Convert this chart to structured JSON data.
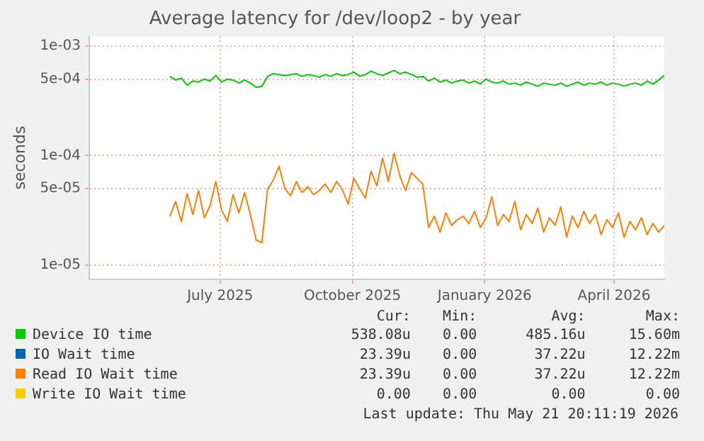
{
  "chart_data": {
    "type": "line",
    "title": "Average latency for /dev/loop2 - by year",
    "ylabel": "seconds",
    "log": "y",
    "grid": true,
    "legend": "bottom",
    "marker": "none",
    "line_style": "solid",
    "xlim": [
      "2025-04-16",
      "2026-05-21"
    ],
    "xticks": [
      {
        "value": "2025-07-16",
        "label": "July 2025"
      },
      {
        "value": "2025-10-16",
        "label": "October 2025"
      },
      {
        "value": "2026-01-16",
        "label": "January 2026"
      },
      {
        "value": "2026-04-16",
        "label": "April 2026"
      }
    ],
    "ylim": [
      7.4e-06,
      0.00123
    ],
    "yticks": [
      {
        "value": 1e-05,
        "label": "1e-05"
      },
      {
        "value": 5e-05,
        "label": "5e-05"
      },
      {
        "value": 0.0001,
        "label": "1e-04"
      },
      {
        "value": 0.0005,
        "label": "5e-04"
      },
      {
        "value": 0.001,
        "label": "1e-03"
      }
    ],
    "x": [
      "2025-06-11",
      "2025-06-15",
      "2025-06-19",
      "2025-06-23",
      "2025-06-27",
      "2025-07-01",
      "2025-07-05",
      "2025-07-09",
      "2025-07-13",
      "2025-07-17",
      "2025-07-21",
      "2025-07-25",
      "2025-07-29",
      "2025-08-02",
      "2025-08-06",
      "2025-08-10",
      "2025-08-14",
      "2025-08-18",
      "2025-08-22",
      "2025-08-26",
      "2025-08-30",
      "2025-09-03",
      "2025-09-07",
      "2025-09-11",
      "2025-09-15",
      "2025-09-19",
      "2025-09-23",
      "2025-09-27",
      "2025-10-01",
      "2025-10-05",
      "2025-10-09",
      "2025-10-13",
      "2025-10-17",
      "2025-10-21",
      "2025-10-25",
      "2025-10-29",
      "2025-11-02",
      "2025-11-06",
      "2025-11-10",
      "2025-11-14",
      "2025-11-18",
      "2025-11-22",
      "2025-11-26",
      "2025-11-30",
      "2025-12-04",
      "2025-12-08",
      "2025-12-12",
      "2025-12-16",
      "2025-12-20",
      "2025-12-24",
      "2025-12-28",
      "2026-01-01",
      "2026-01-05",
      "2026-01-09",
      "2026-01-13",
      "2026-01-17",
      "2026-01-21",
      "2026-01-25",
      "2026-01-29",
      "2026-02-02",
      "2026-02-06",
      "2026-02-10",
      "2026-02-14",
      "2026-02-18",
      "2026-02-22",
      "2026-02-26",
      "2026-03-02",
      "2026-03-06",
      "2026-03-10",
      "2026-03-14",
      "2026-03-18",
      "2026-03-22",
      "2026-03-26",
      "2026-03-30",
      "2026-04-03",
      "2026-04-07",
      "2026-04-11",
      "2026-04-15",
      "2026-04-19",
      "2026-04-23",
      "2026-04-27",
      "2026-05-01",
      "2026-05-05",
      "2026-05-09",
      "2026-05-13",
      "2026-05-17",
      "2026-05-21"
    ],
    "series": [
      {
        "name": "Device IO time",
        "color": "#00cc00",
        "values": [
          0.00053,
          0.00049,
          0.00051,
          0.00044,
          0.00048,
          0.00047,
          0.0005,
          0.00048,
          0.00054,
          0.00047,
          0.0005,
          0.00049,
          0.00046,
          0.00049,
          0.00046,
          0.00042,
          0.00043,
          0.00053,
          0.00056,
          0.00055,
          0.00054,
          0.00055,
          0.00056,
          0.00053,
          0.00055,
          0.00054,
          0.00052,
          0.00055,
          0.00053,
          0.00056,
          0.00054,
          0.00055,
          0.00058,
          0.00053,
          0.00055,
          0.00059,
          0.00056,
          0.00054,
          0.00057,
          0.0006,
          0.00056,
          0.00058,
          0.00055,
          0.00052,
          0.00053,
          0.00048,
          0.00051,
          0.00047,
          0.00049,
          0.00046,
          0.00048,
          0.00049,
          0.00046,
          0.00048,
          0.00045,
          0.0005,
          0.00047,
          0.00046,
          0.00048,
          0.00045,
          0.00046,
          0.00044,
          0.00047,
          0.00045,
          0.00043,
          0.00046,
          0.00045,
          0.00044,
          0.00046,
          0.00043,
          0.00045,
          0.00047,
          0.00044,
          0.00046,
          0.00045,
          0.00047,
          0.00044,
          0.00046,
          0.00045,
          0.00043,
          0.00045,
          0.00046,
          0.00044,
          0.00048,
          0.00045,
          0.00049,
          0.00054
        ]
      },
      {
        "name": "IO Wait time",
        "color": "#0066b3",
        "values": [
          null,
          null,
          null,
          null,
          null,
          null,
          null,
          null,
          null,
          null,
          null,
          null,
          null,
          null,
          null,
          null,
          null,
          null,
          null,
          null,
          null,
          null,
          null,
          null,
          null,
          null,
          null,
          null,
          null,
          null,
          null,
          null,
          null,
          null,
          null,
          null,
          null,
          null,
          null,
          null,
          null,
          null,
          null,
          null,
          null,
          null,
          null,
          null,
          null,
          null,
          null,
          null,
          null,
          null,
          null,
          null,
          null,
          null,
          null,
          null,
          null,
          null,
          null,
          null,
          null,
          null,
          null,
          null,
          null,
          null,
          null,
          null,
          null,
          null,
          null,
          null,
          null,
          null,
          null,
          null,
          null,
          null,
          null,
          null,
          null,
          null,
          null
        ]
      },
      {
        "name": "Read IO Wait time",
        "color": "#ff8000",
        "values": [
          2.8e-05,
          3.8e-05,
          2.5e-05,
          4.5e-05,
          2.9e-05,
          4.8e-05,
          2.7e-05,
          3.5e-05,
          5.8e-05,
          3.2e-05,
          2.5e-05,
          4.4e-05,
          3e-05,
          4.6e-05,
          2.9e-05,
          1.7e-05,
          1.6e-05,
          4.9e-05,
          6e-05,
          8e-05,
          5e-05,
          4.3e-05,
          5.8e-05,
          4.6e-05,
          5.2e-05,
          4.4e-05,
          4.8e-05,
          5.5e-05,
          4.6e-05,
          5.8e-05,
          4.9e-05,
          3.6e-05,
          6.2e-05,
          5e-05,
          4.1e-05,
          7.2e-05,
          5.3e-05,
          9.5e-05,
          5.8e-05,
          0.000105,
          6.5e-05,
          4.8e-05,
          7e-05,
          6.2e-05,
          5.5e-05,
          2.2e-05,
          2.8e-05,
          2e-05,
          3e-05,
          2.3e-05,
          2.6e-05,
          2.8e-05,
          2.4e-05,
          3.1e-05,
          2.2e-05,
          2.7e-05,
          4.2e-05,
          2.3e-05,
          2.9e-05,
          2.5e-05,
          3.8e-05,
          2.1e-05,
          2.9e-05,
          2.4e-05,
          3.3e-05,
          2e-05,
          2.7e-05,
          2.3e-05,
          3.4e-05,
          1.8e-05,
          2.8e-05,
          2.2e-05,
          3.1e-05,
          2.4e-05,
          2.9e-05,
          1.9e-05,
          2.6e-05,
          2.2e-05,
          3e-05,
          1.8e-05,
          2.5e-05,
          2.1e-05,
          2.7e-05,
          1.9e-05,
          2.4e-05,
          2e-05,
          2.3e-05
        ]
      },
      {
        "name": "Write IO Wait time",
        "color": "#ffcc00",
        "values": [
          null,
          null,
          null,
          null,
          null,
          null,
          null,
          null,
          null,
          null,
          null,
          null,
          null,
          null,
          null,
          null,
          null,
          null,
          null,
          null,
          null,
          null,
          null,
          null,
          null,
          null,
          null,
          null,
          null,
          null,
          null,
          null,
          null,
          null,
          null,
          null,
          null,
          null,
          null,
          null,
          null,
          null,
          null,
          null,
          null,
          null,
          null,
          null,
          null,
          null,
          null,
          null,
          null,
          null,
          null,
          null,
          null,
          null,
          null,
          null,
          null,
          null,
          null,
          null,
          null,
          null,
          null,
          null,
          null,
          null,
          null,
          null,
          null,
          null,
          null,
          null,
          null,
          null,
          null,
          null,
          null,
          null,
          null,
          null,
          null,
          null,
          null
        ]
      }
    ],
    "annotations": [
      "Cur:",
      "Min:",
      "Avg:",
      "Max:",
      "538.08u",
      "0.00",
      "485.16u",
      "15.60m",
      "23.39u",
      "0.00",
      "37.22u",
      "12.22m",
      "23.39u",
      "0.00",
      "37.22u",
      "12.22m",
      "0.00",
      "0.00",
      "0.00",
      "0.00",
      "Last update: Thu May 21 20:11:19 2026"
    ]
  }
}
